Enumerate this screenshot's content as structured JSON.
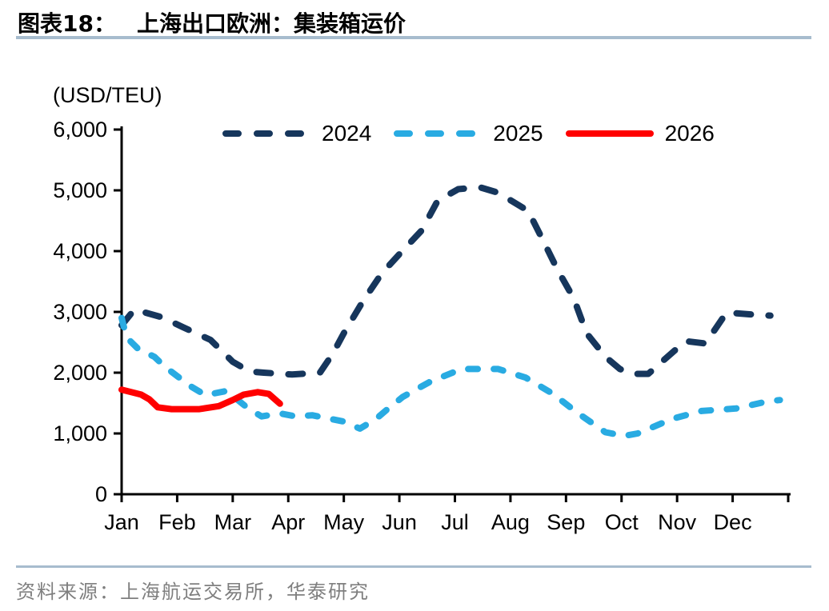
{
  "header": {
    "label": "图表18：",
    "title": "上海出口欧洲：集装箱运价"
  },
  "footer": {
    "source": "资料来源：上海航运交易所，华泰研究"
  },
  "theme": {
    "divider_color": "#A7BCCE",
    "axis_color": "#000000",
    "source_text_color": "#7F7F7F"
  },
  "chart_data": {
    "type": "line",
    "title": "上海出口欧洲：集装箱运价",
    "unit_label": "(USD/TEU)",
    "ylabel": "USD/TEU",
    "xlabel": "",
    "ylim": [
      0,
      6000
    ],
    "y_ticks": [
      0,
      1000,
      2000,
      3000,
      4000,
      5000,
      6000
    ],
    "y_tick_labels": [
      "0",
      "1,000",
      "2,000",
      "3,000",
      "4,000",
      "5,000",
      "6,000"
    ],
    "x_categories": [
      "Jan",
      "Feb",
      "Mar",
      "Apr",
      "May",
      "Jun",
      "Jul",
      "Aug",
      "Sep",
      "Oct",
      "Nov",
      "Dec"
    ],
    "x_unit": "months, 0 = start of Jan, 12 = end of Dec",
    "grid": false,
    "legend_position": "top",
    "series": [
      {
        "name": "2024",
        "color": "#16365C",
        "line_style": "dashed",
        "points": [
          [
            0,
            2780
          ],
          [
            0.23,
            3040
          ],
          [
            0.73,
            2910
          ],
          [
            1.1,
            2750
          ],
          [
            1.6,
            2540
          ],
          [
            2.0,
            2180
          ],
          [
            2.3,
            2020
          ],
          [
            2.56,
            2000
          ],
          [
            3.07,
            1970
          ],
          [
            3.57,
            2000
          ],
          [
            3.8,
            2310
          ],
          [
            4.0,
            2650
          ],
          [
            4.34,
            3170
          ],
          [
            4.68,
            3630
          ],
          [
            5.0,
            3950
          ],
          [
            5.4,
            4340
          ],
          [
            5.69,
            4830
          ],
          [
            6.06,
            5020
          ],
          [
            6.45,
            5050
          ],
          [
            6.78,
            4960
          ],
          [
            7.32,
            4660
          ],
          [
            7.6,
            4150
          ],
          [
            7.85,
            3690
          ],
          [
            8.14,
            3220
          ],
          [
            8.37,
            2650
          ],
          [
            8.71,
            2260
          ],
          [
            8.97,
            2060
          ],
          [
            9.19,
            1980
          ],
          [
            9.48,
            1980
          ],
          [
            9.69,
            2150
          ],
          [
            10.15,
            2520
          ],
          [
            10.51,
            2480
          ],
          [
            10.89,
            2990
          ],
          [
            11.3,
            2960
          ],
          [
            11.68,
            2940
          ]
        ]
      },
      {
        "name": "2025",
        "color": "#29ABE2",
        "line_style": "dashed",
        "points": [
          [
            0,
            2900
          ],
          [
            0.09,
            2580
          ],
          [
            0.3,
            2390
          ],
          [
            0.59,
            2260
          ],
          [
            0.79,
            2090
          ],
          [
            1.02,
            1930
          ],
          [
            1.27,
            1760
          ],
          [
            1.51,
            1630
          ],
          [
            1.89,
            1700
          ],
          [
            2.28,
            1410
          ],
          [
            2.52,
            1280
          ],
          [
            2.85,
            1330
          ],
          [
            3.14,
            1280
          ],
          [
            3.43,
            1300
          ],
          [
            3.76,
            1240
          ],
          [
            3.98,
            1200
          ],
          [
            4.29,
            1080
          ],
          [
            4.58,
            1240
          ],
          [
            4.8,
            1410
          ],
          [
            5.06,
            1600
          ],
          [
            5.55,
            1850
          ],
          [
            6.12,
            2060
          ],
          [
            6.78,
            2060
          ],
          [
            7.27,
            1920
          ],
          [
            7.75,
            1660
          ],
          [
            8.22,
            1330
          ],
          [
            8.71,
            1020
          ],
          [
            9.05,
            960
          ],
          [
            9.29,
            1000
          ],
          [
            9.91,
            1240
          ],
          [
            10.44,
            1370
          ],
          [
            11.06,
            1410
          ],
          [
            11.64,
            1530
          ],
          [
            11.85,
            1550
          ]
        ]
      },
      {
        "name": "2026",
        "color": "#FF0000",
        "line_style": "solid",
        "points": [
          [
            0,
            1720
          ],
          [
            0.35,
            1640
          ],
          [
            0.5,
            1560
          ],
          [
            0.65,
            1430
          ],
          [
            0.9,
            1400
          ],
          [
            1.4,
            1400
          ],
          [
            1.75,
            1450
          ],
          [
            2.0,
            1550
          ],
          [
            2.2,
            1640
          ],
          [
            2.45,
            1680
          ],
          [
            2.65,
            1650
          ],
          [
            2.85,
            1490
          ]
        ]
      }
    ]
  }
}
